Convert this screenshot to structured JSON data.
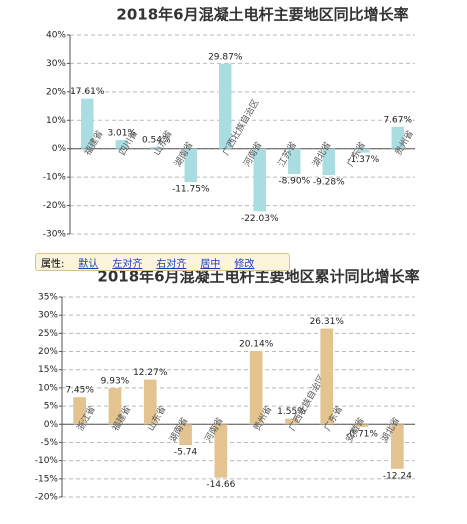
{
  "chart_data": [
    {
      "type": "bar",
      "title": "2018年6月混凝土电杆主要地区同比增长率",
      "categories": [
        "福建省",
        "四川省",
        "山东省",
        "湖南省",
        "广西壮族自治区",
        "河南省",
        "江苏省",
        "湖北省",
        "广东省",
        "贵州省"
      ],
      "values": [
        17.61,
        3.01,
        0.54,
        -11.75,
        29.87,
        -22.03,
        -8.9,
        -9.28,
        -1.37,
        7.67
      ],
      "value_labels": [
        "17.61%",
        "3.01%",
        "0.54%",
        "-11.75%",
        "29.87%",
        "-22.03%",
        "-8.90%",
        "-9.28%",
        "-1.37%",
        "7.67%"
      ],
      "color": "#a9dde1",
      "grid": true,
      "ylim": [
        -30,
        40
      ],
      "yticks": [
        {
          "value": -30,
          "label": "-30%"
        },
        {
          "value": -20,
          "label": "-20%"
        },
        {
          "value": -10,
          "label": "-10%"
        },
        {
          "value": 0,
          "label": "0%"
        },
        {
          "value": 10,
          "label": "10%"
        },
        {
          "value": 20,
          "label": "20%"
        },
        {
          "value": 30,
          "label": "30%"
        },
        {
          "value": 40,
          "label": "40%"
        }
      ]
    },
    {
      "type": "bar",
      "title": "2018年6月混凝土电杆主要地区累计同比增长率",
      "categories": [
        "浙江省",
        "福建省",
        "山东省",
        "湖南省",
        "河南省",
        "贵州省",
        "广西壮族自治区",
        "广东省",
        "安徽省",
        "湖北省"
      ],
      "values": [
        7.45,
        9.93,
        12.27,
        -5.74,
        -14.66,
        20.14,
        1.55,
        26.31,
        -0.71,
        -12.24
      ],
      "value_labels": [
        "7.45%",
        "9.93%",
        "12.27%",
        "-5.74",
        "-14.66",
        "20.14%",
        "1.55%",
        "26.31%",
        "-0.71%",
        "-12.24"
      ],
      "color": "#e3c38f",
      "grid": true,
      "ylim": [
        -20,
        35
      ],
      "yticks": [
        {
          "value": -20,
          "label": "-20%"
        },
        {
          "value": -15,
          "label": "-15%"
        },
        {
          "value": -10,
          "label": "-10%"
        },
        {
          "value": -5,
          "label": "-5%"
        },
        {
          "value": 0,
          "label": "0%"
        },
        {
          "value": 5,
          "label": "5%"
        },
        {
          "value": 10,
          "label": "10%"
        },
        {
          "value": 15,
          "label": "15%"
        },
        {
          "value": 20,
          "label": "20%"
        },
        {
          "value": 25,
          "label": "25%"
        },
        {
          "value": 30,
          "label": "30%"
        },
        {
          "value": 35,
          "label": "35%"
        }
      ]
    }
  ],
  "toolbar": {
    "label": "属性:",
    "links": [
      "默认",
      "左对齐",
      "右对齐",
      "居中",
      "修改"
    ]
  }
}
